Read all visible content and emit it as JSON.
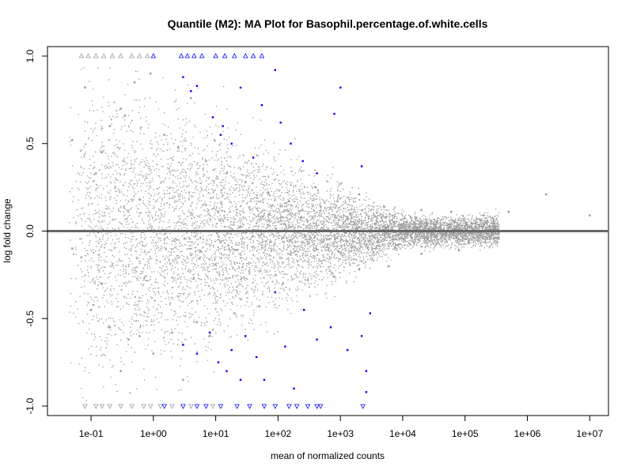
{
  "chart_data": {
    "type": "scatter",
    "title": "Quantile (M2): MA Plot for Basophil.percentage.of.white.cells",
    "xlabel": "mean of normalized counts",
    "ylabel": "log fold change",
    "x_scale": "log10",
    "xlim": [
      0.02,
      20000000
    ],
    "ylim": [
      -1.0,
      1.0
    ],
    "x_ticks": [
      {
        "value": 0.1,
        "label": "1e-01"
      },
      {
        "value": 1,
        "label": "1e+00"
      },
      {
        "value": 10,
        "label": "1e+01"
      },
      {
        "value": 100,
        "label": "1e+02"
      },
      {
        "value": 1000,
        "label": "1e+03"
      },
      {
        "value": 10000,
        "label": "1e+04"
      },
      {
        "value": 100000,
        "label": "1e+05"
      },
      {
        "value": 1000000,
        "label": "1e+06"
      },
      {
        "value": 10000000,
        "label": "1e+07"
      }
    ],
    "y_ticks": [
      {
        "value": 1.0,
        "label": "1.0"
      },
      {
        "value": 0.5,
        "label": "0.5"
      },
      {
        "value": 0.0,
        "label": "0.0"
      },
      {
        "value": -0.5,
        "label": "-0.5"
      },
      {
        "value": -1.0,
        "label": "-1.0"
      }
    ],
    "reference_line": {
      "y": 0,
      "color": "#666666"
    },
    "grid": false,
    "legend": "none",
    "colors": {
      "not_significant": "#999999",
      "significant": "#0000ff",
      "significant_light": "#3366ff"
    },
    "series": [
      {
        "marker": "point",
        "color": "#999999",
        "points": [
          [
            0.05,
            0.52
          ],
          [
            0.08,
            0.82
          ],
          [
            0.12,
            0.33
          ],
          [
            0.15,
            0.45
          ],
          [
            0.2,
            0.6
          ],
          [
            0.3,
            0.7
          ],
          [
            0.35,
            0.66
          ],
          [
            0.5,
            0.85
          ],
          [
            0.6,
            0.18
          ],
          [
            0.9,
            0.9
          ],
          [
            1.5,
            0.55
          ],
          [
            2.5,
            0.48
          ],
          [
            4,
            0.76
          ],
          [
            7,
            0.4
          ],
          [
            15,
            0.33
          ],
          [
            30,
            0.28
          ],
          [
            70,
            0.22
          ],
          [
            150,
            0.17
          ],
          [
            400,
            0.25
          ],
          [
            900,
            0.17
          ],
          [
            2000,
            0.21
          ],
          [
            5000,
            0.14
          ],
          [
            20000,
            0.12
          ],
          [
            60000,
            0.11
          ],
          [
            200000,
            0.09
          ],
          [
            500000,
            0.11
          ],
          [
            2000000,
            0.21
          ],
          [
            10000000,
            0.09
          ],
          [
            0.05,
            -0.1
          ],
          [
            0.07,
            -0.15
          ],
          [
            0.1,
            -0.45
          ],
          [
            0.15,
            -0.3
          ],
          [
            0.2,
            -0.55
          ],
          [
            0.3,
            -0.8
          ],
          [
            0.4,
            -0.62
          ],
          [
            0.6,
            -0.6
          ],
          [
            1,
            -0.7
          ],
          [
            2,
            -0.58
          ],
          [
            3,
            -0.85
          ],
          [
            5,
            -0.52
          ],
          [
            8,
            -0.6
          ],
          [
            20,
            -0.47
          ],
          [
            50,
            -0.43
          ],
          [
            120,
            -0.3
          ],
          [
            300,
            -0.28
          ],
          [
            800,
            -0.26
          ],
          [
            2000,
            -0.22
          ],
          [
            6000,
            -0.2
          ],
          [
            20000,
            -0.13
          ],
          [
            80000,
            -0.11
          ],
          [
            300000,
            -0.04
          ]
        ]
      },
      {
        "marker": "point",
        "color": "#0000ff",
        "points": [
          [
            3,
            0.88
          ],
          [
            4,
            0.8
          ],
          [
            5,
            0.83
          ],
          [
            9,
            0.65
          ],
          [
            12,
            0.55
          ],
          [
            13,
            0.6
          ],
          [
            18,
            0.5
          ],
          [
            25,
            0.82
          ],
          [
            40,
            0.42
          ],
          [
            55,
            0.72
          ],
          [
            90,
            0.92
          ],
          [
            110,
            0.62
          ],
          [
            160,
            0.5
          ],
          [
            250,
            0.4
          ],
          [
            420,
            0.33
          ],
          [
            800,
            0.67
          ],
          [
            1000,
            0.82
          ],
          [
            2200,
            0.37
          ],
          [
            3,
            -0.65
          ],
          [
            5,
            -0.7
          ],
          [
            8,
            -0.58
          ],
          [
            11,
            -0.75
          ],
          [
            15,
            -0.8
          ],
          [
            18,
            -0.68
          ],
          [
            25,
            -0.85
          ],
          [
            30,
            -0.6
          ],
          [
            45,
            -0.72
          ],
          [
            60,
            -0.85
          ],
          [
            90,
            -0.35
          ],
          [
            130,
            -0.66
          ],
          [
            180,
            -0.9
          ],
          [
            260,
            -0.45
          ],
          [
            420,
            -0.62
          ],
          [
            700,
            -0.55
          ],
          [
            1300,
            -0.68
          ],
          [
            2200,
            -0.6
          ],
          [
            2600,
            -0.8
          ],
          [
            3000,
            -0.47
          ],
          [
            2600,
            -0.92
          ]
        ]
      },
      {
        "marker": "triangle-up",
        "note": "out of range, capped at top",
        "color": "#999999",
        "points": [
          [
            0.07,
            1
          ],
          [
            0.09,
            1
          ],
          [
            0.12,
            1
          ],
          [
            0.16,
            1
          ],
          [
            0.22,
            1
          ],
          [
            0.3,
            1
          ],
          [
            0.45,
            1
          ],
          [
            0.6,
            1
          ],
          [
            0.8,
            1
          ]
        ]
      },
      {
        "marker": "triangle-up",
        "note": "out of range, capped at top",
        "color": "#0000ff",
        "points": [
          [
            1,
            1
          ],
          [
            2.8,
            1
          ],
          [
            3.5,
            1
          ],
          [
            4.5,
            1
          ],
          [
            6,
            1
          ],
          [
            10,
            1
          ],
          [
            14,
            1
          ],
          [
            20,
            1
          ],
          [
            30,
            1
          ],
          [
            40,
            1
          ],
          [
            55,
            1
          ]
        ]
      },
      {
        "marker": "triangle-down",
        "note": "out of range, capped at bottom",
        "color": "#999999",
        "points": [
          [
            0.08,
            -1
          ],
          [
            0.12,
            -1
          ],
          [
            0.15,
            -1
          ],
          [
            0.2,
            -1
          ],
          [
            0.3,
            -1
          ],
          [
            0.45,
            -1
          ],
          [
            0.7,
            -1
          ],
          [
            0.9,
            -1
          ],
          [
            1.3,
            -1
          ],
          [
            2,
            -1
          ],
          [
            4,
            -1
          ],
          [
            9,
            -1
          ]
        ]
      },
      {
        "marker": "triangle-down",
        "note": "out of range, capped at bottom",
        "color": "#0000ff",
        "points": [
          [
            1.5,
            -1
          ],
          [
            3,
            -1
          ],
          [
            5,
            -1
          ],
          [
            7,
            -1
          ],
          [
            12,
            -1
          ],
          [
            22,
            -1
          ],
          [
            35,
            -1
          ],
          [
            60,
            -1
          ],
          [
            90,
            -1
          ],
          [
            150,
            -1
          ],
          [
            200,
            -1
          ],
          [
            300,
            -1
          ],
          [
            420,
            -1
          ],
          [
            480,
            -1
          ],
          [
            2300,
            -1
          ]
        ]
      }
    ]
  }
}
